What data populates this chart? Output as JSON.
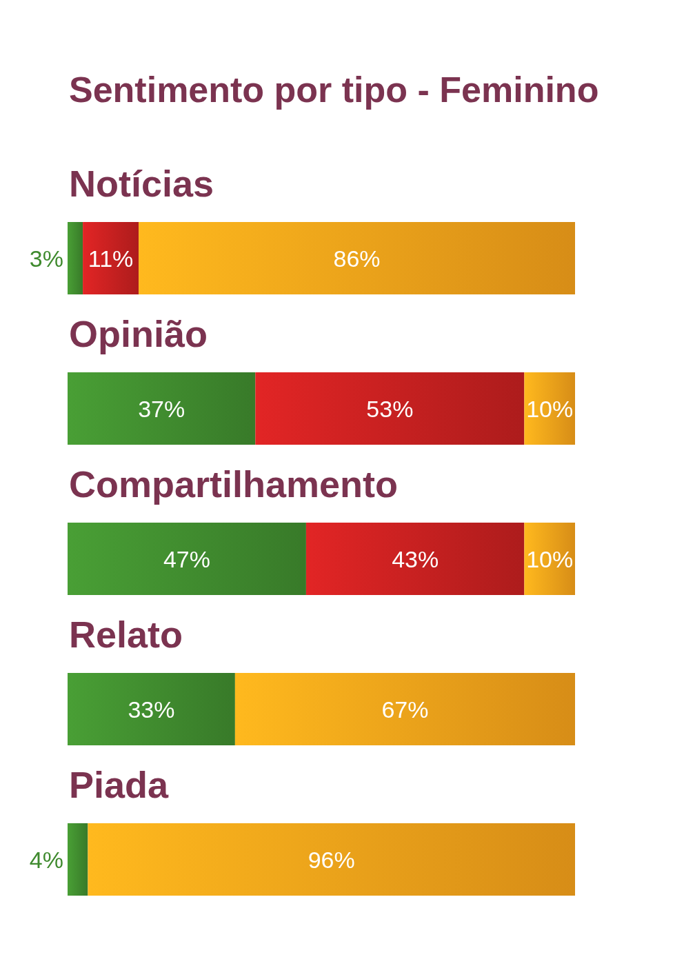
{
  "chart_data": {
    "type": "bar",
    "title": "Sentimento por tipo - Feminino",
    "orientation": "horizontal",
    "stacked": true,
    "tick_labels": "y",
    "categories": [
      "Notícias",
      "Opinião",
      "Compartilhamento",
      "Relato",
      "Piada"
    ],
    "xlim": [
      0,
      100
    ],
    "series": [
      {
        "color": "#3f8a2e",
        "values": [
          3,
          37,
          47,
          33,
          4
        ],
        "value_labels": [
          "3%",
          "37%",
          "47%",
          "33%",
          "4%"
        ]
      },
      {
        "color": "#c42020",
        "values": [
          11,
          53,
          43,
          null,
          null
        ],
        "value_labels": [
          "11%",
          "53%",
          "43%",
          null,
          null
        ]
      },
      {
        "color": "#f4a01a",
        "values": [
          86,
          10,
          10,
          67,
          96
        ],
        "value_labels": [
          "86%",
          "10%",
          "10%",
          "67%",
          "96%"
        ]
      }
    ]
  }
}
